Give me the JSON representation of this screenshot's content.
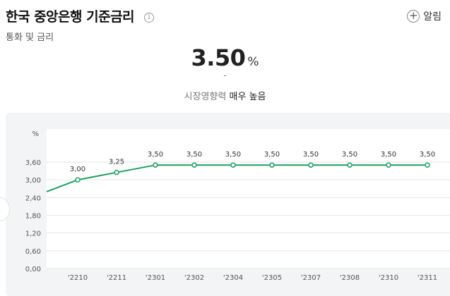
{
  "header": {
    "title": "한국 중앙은행 기준금리",
    "info_icon": "info-icon",
    "subtitle": "통화 및 금리",
    "alarm_label": "알림",
    "alarm_icon": "plus-circle-icon"
  },
  "summary": {
    "rate_value": "3.50",
    "rate_unit": "%",
    "change": "-",
    "impact_label": "시장영향력",
    "impact_level": "매우 높음"
  },
  "colors": {
    "line": "#1aa260",
    "background": "#ffffff",
    "chart_bg": "#f3f4f6"
  },
  "chart_data": {
    "type": "line",
    "y_unit_label": "%",
    "ylim": [
      0,
      3.6
    ],
    "y_ticks": [
      "0,00",
      "0,60",
      "1,20",
      "1,80",
      "2,40",
      "3,00",
      "3,60"
    ],
    "x_tick_labels": [
      "'2210",
      "'2211",
      "'2301",
      "'2302",
      "'2304",
      "'2305",
      "'2307",
      "'2308",
      "'2310",
      "'2311"
    ],
    "series": [
      {
        "values": [
          2.5,
          3.0,
          3.25,
          3.5,
          3.5,
          3.5,
          3.5,
          3.5,
          3.5,
          3.5,
          3.5
        ],
        "data_labels": [
          null,
          "3,00",
          "3,25",
          "3,50",
          "3,50",
          "3,50",
          "3,50",
          "3,50",
          "3,50",
          "3,50",
          "3,50"
        ]
      }
    ],
    "grid": true,
    "legend": "none"
  }
}
